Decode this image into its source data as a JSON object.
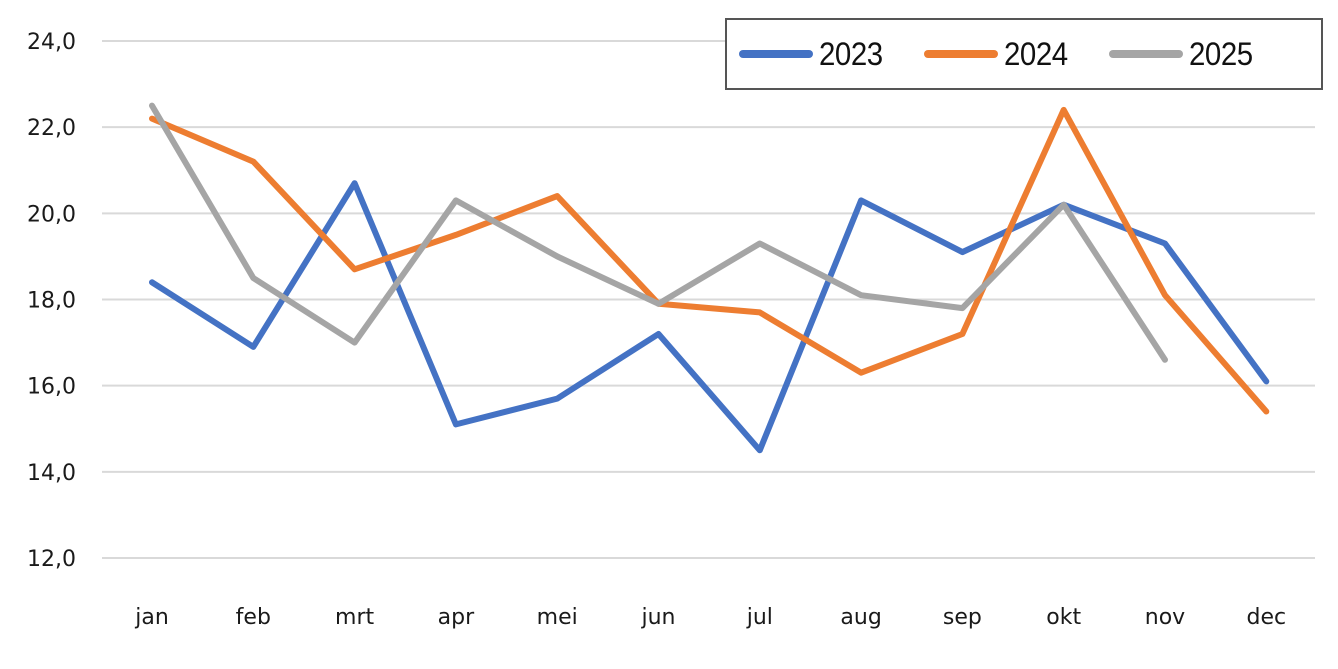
{
  "chart_data": {
    "type": "line",
    "title": "",
    "xlabel": "",
    "ylabel": "",
    "categories": [
      "jan",
      "feb",
      "mrt",
      "apr",
      "mei",
      "jun",
      "jul",
      "aug",
      "sep",
      "okt",
      "nov",
      "dec"
    ],
    "y_ticks": [
      "12,0",
      "14,0",
      "16,0",
      "18,0",
      "20,0",
      "22,0",
      "24,0"
    ],
    "ylim": [
      12,
      24
    ],
    "grid": true,
    "legend_position": "top-right",
    "series": [
      {
        "name": "2023",
        "color": "#4472C4",
        "values": [
          18.4,
          16.9,
          20.7,
          15.1,
          15.7,
          17.2,
          14.5,
          20.3,
          19.1,
          20.2,
          19.3,
          16.1
        ]
      },
      {
        "name": "2024",
        "color": "#ED7D31",
        "values": [
          22.2,
          21.2,
          18.7,
          19.5,
          20.4,
          17.9,
          17.7,
          16.3,
          17.2,
          22.4,
          18.1,
          15.4
        ]
      },
      {
        "name": "2025",
        "color": "#A5A5A5",
        "values": [
          22.5,
          18.5,
          17.0,
          20.3,
          19.0,
          17.9,
          19.3,
          18.1,
          17.8,
          20.2,
          16.6,
          null
        ]
      }
    ]
  },
  "legend": {
    "items": [
      {
        "label": "2023",
        "color": "#4472C4"
      },
      {
        "label": "2024",
        "color": "#ED7D31"
      },
      {
        "label": "2025",
        "color": "#A5A5A5"
      }
    ]
  }
}
